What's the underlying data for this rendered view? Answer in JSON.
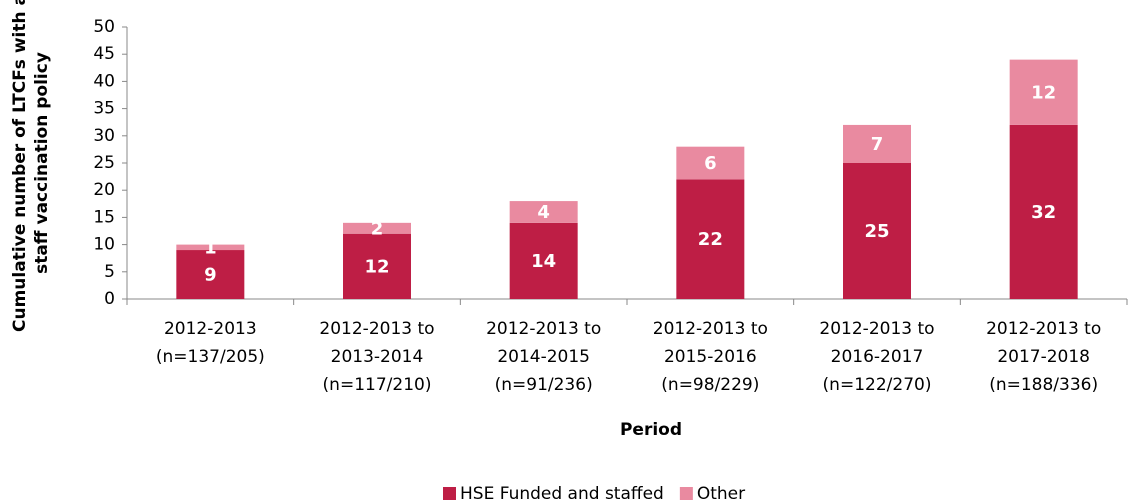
{
  "chart_data": {
    "type": "stacked_bar",
    "categories": [
      [
        "2012-2013",
        "(n=137/205)"
      ],
      [
        "2012-2013 to",
        "2013-2014",
        "(n=117/210)"
      ],
      [
        "2012-2013 to",
        "2014-2015",
        "(n=91/236)"
      ],
      [
        "2012-2013 to",
        "2015-2016",
        "(n=98/229)"
      ],
      [
        "2012-2013 to",
        "2016-2017",
        "(n=122/270)"
      ],
      [
        "2012-2013 to",
        "2017-2018",
        "(n=188/336)"
      ]
    ],
    "series": [
      {
        "name": "HSE Funded and staffed",
        "color": "#be1e45",
        "values": [
          9,
          12,
          14,
          22,
          25,
          32
        ]
      },
      {
        "name": "Other",
        "color": "#e98aa0",
        "values": [
          1,
          2,
          4,
          6,
          7,
          12
        ]
      }
    ],
    "ylim": [
      0,
      50
    ],
    "yticks": [
      0,
      5,
      10,
      15,
      20,
      25,
      30,
      35,
      40,
      45,
      50
    ],
    "x_label": "Period",
    "y_label": [
      "Cumulative number of LTCFs with a",
      "staff vaccination policy"
    ],
    "legend": "bottom"
  }
}
